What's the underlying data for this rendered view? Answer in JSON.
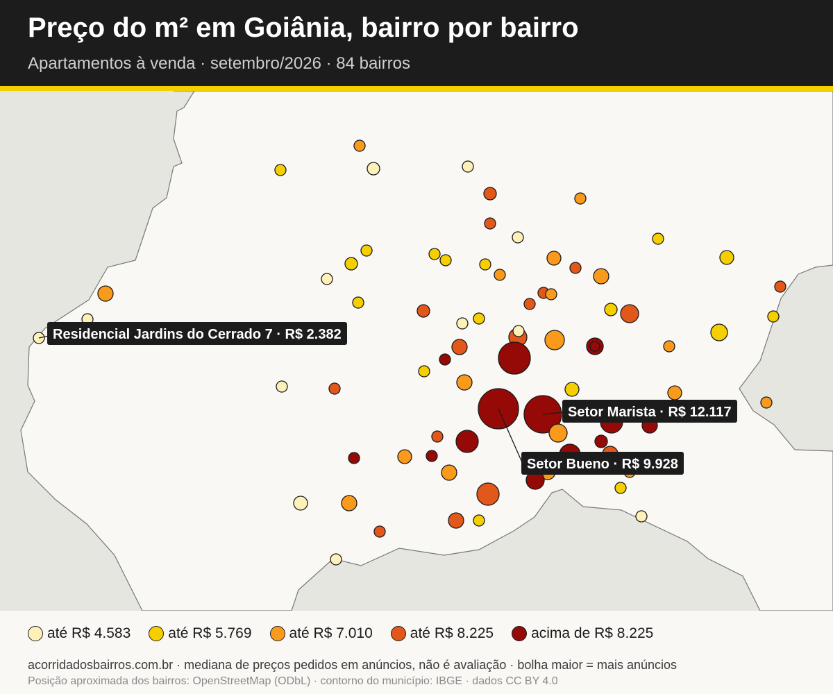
{
  "header": {
    "title": "Preço do m² em Goiânia, bairro por bairro",
    "subtitle": "Apartamentos à venda · setembro/2026 · 84 bairros"
  },
  "colors": {
    "header_bg": "#1c1c1c",
    "accent": "#f6cf00",
    "map_bg": "#f9f8f5",
    "outside_area": "#e6e6e0",
    "boundary": "#777777",
    "classes": [
      "#fdf0b8",
      "#f6cf00",
      "#f99a1c",
      "#e2581a",
      "#950a06"
    ]
  },
  "legend": [
    {
      "label": "até R$ 4.583",
      "class": 0
    },
    {
      "label": "até R$ 5.769",
      "class": 1
    },
    {
      "label": "até R$ 7.010",
      "class": 2
    },
    {
      "label": "até R$ 8.225",
      "class": 3
    },
    {
      "label": "acima de R$ 8.225",
      "class": 4
    }
  ],
  "callouts": [
    {
      "name": "Residencial Jardins do Cerrado 7",
      "price": "R$ 2.382",
      "text": "Residencial Jardins do Cerrado 7 · R$ 2.382"
    },
    {
      "name": "Setor Marista",
      "price": "R$ 12.117",
      "text": "Setor Marista · R$ 12.117"
    },
    {
      "name": "Setor Bueno",
      "price": "R$ 9.928",
      "text": "Setor Bueno · R$ 9.928"
    }
  ],
  "footer": {
    "line1": "acorridadosbairros.com.br · mediana de preços pedidos em anúncios, não é avaliação · bolha maior = mais anúncios",
    "line2": "Posição aproximada dos bairros: OpenStreetMap (ODbL) · contorno do município: IBGE · dados CC BY 4.0"
  }
}
